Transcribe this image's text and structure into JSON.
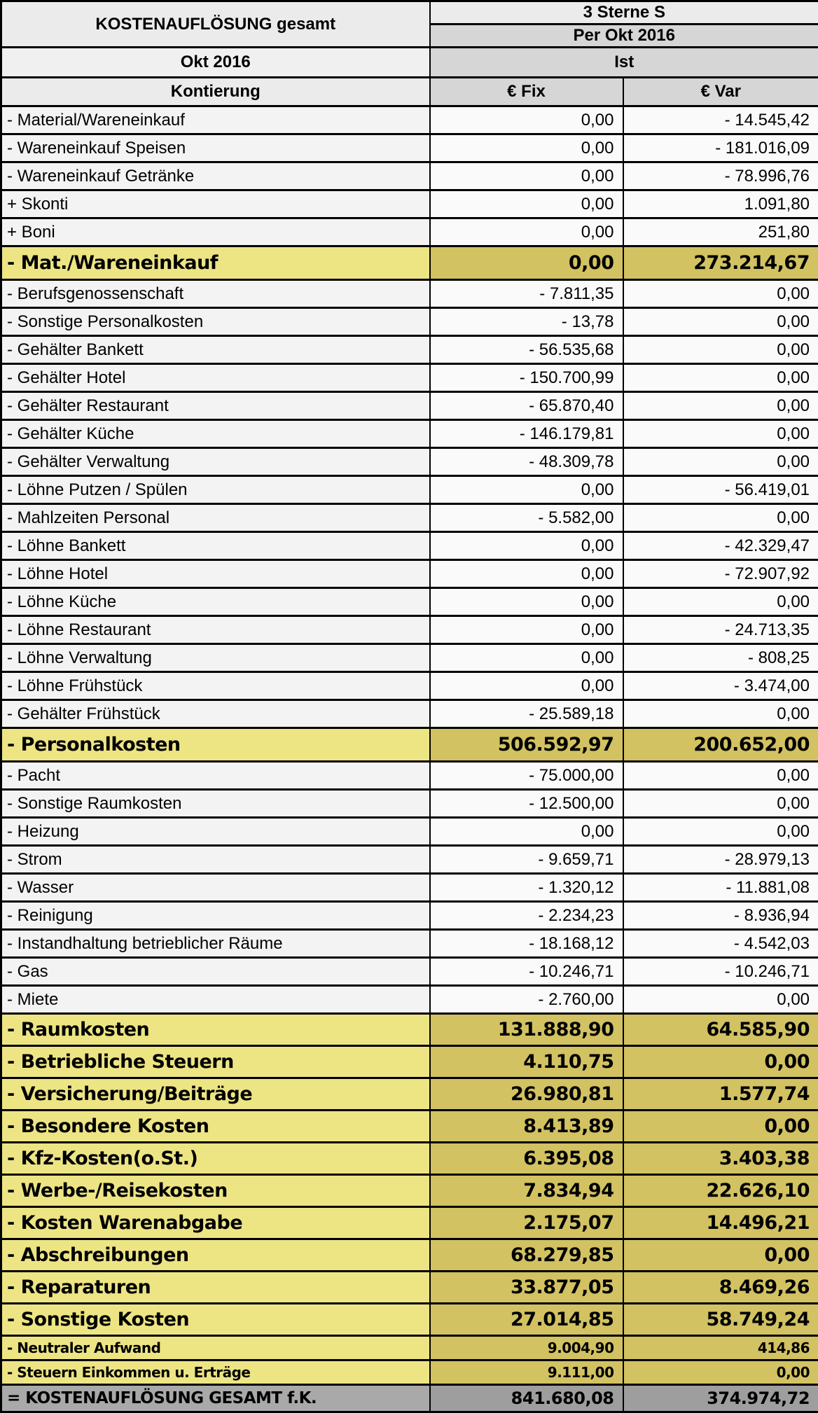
{
  "table": {
    "title": "KOSTENAUFLÖSUNG gesamt",
    "property_class": "3 Sterne S",
    "report_period": "Per Okt 2016",
    "month": "Okt 2016",
    "scenario": "Ist",
    "columns": {
      "account": "Kontierung",
      "fix": "€ Fix",
      "var": "€ Var"
    }
  },
  "rows": [
    {
      "type": "normal",
      "label": "- Material/Wareneinkauf",
      "fix": "0,00",
      "var": "- 14.545,42"
    },
    {
      "type": "normal",
      "label": "- Wareneinkauf Speisen",
      "fix": "0,00",
      "var": "- 181.016,09"
    },
    {
      "type": "normal",
      "label": "- Wareneinkauf Getränke",
      "fix": "0,00",
      "var": "- 78.996,76"
    },
    {
      "type": "normal",
      "label": "+ Skonti",
      "fix": "0,00",
      "var": "1.091,80"
    },
    {
      "type": "normal",
      "label": "+ Boni",
      "fix": "0,00",
      "var": "251,80"
    },
    {
      "type": "summary",
      "label": "- Mat./Wareneinkauf",
      "fix": "0,00",
      "var": "273.214,67"
    },
    {
      "type": "normal",
      "label": "- Berufsgenossenschaft",
      "fix": "- 7.811,35",
      "var": "0,00"
    },
    {
      "type": "normal",
      "label": "- Sonstige Personalkosten",
      "fix": "- 13,78",
      "var": "0,00"
    },
    {
      "type": "normal",
      "label": "- Gehälter Bankett",
      "fix": "- 56.535,68",
      "var": "0,00"
    },
    {
      "type": "normal",
      "label": "- Gehälter Hotel",
      "fix": "- 150.700,99",
      "var": "0,00"
    },
    {
      "type": "normal",
      "label": "- Gehälter Restaurant",
      "fix": "- 65.870,40",
      "var": "0,00"
    },
    {
      "type": "normal",
      "label": "- Gehälter Küche",
      "fix": "- 146.179,81",
      "var": "0,00"
    },
    {
      "type": "normal",
      "label": "- Gehälter Verwaltung",
      "fix": "- 48.309,78",
      "var": "0,00"
    },
    {
      "type": "normal",
      "label": "- Löhne Putzen / Spülen",
      "fix": "0,00",
      "var": "- 56.419,01"
    },
    {
      "type": "normal",
      "label": "- Mahlzeiten Personal",
      "fix": "- 5.582,00",
      "var": "0,00"
    },
    {
      "type": "normal",
      "label": "- Löhne Bankett",
      "fix": "0,00",
      "var": "- 42.329,47"
    },
    {
      "type": "normal",
      "label": "- Löhne Hotel",
      "fix": "0,00",
      "var": "- 72.907,92"
    },
    {
      "type": "normal",
      "label": "- Löhne Küche",
      "fix": "0,00",
      "var": "0,00"
    },
    {
      "type": "normal",
      "label": "- Löhne Restaurant",
      "fix": "0,00",
      "var": "- 24.713,35"
    },
    {
      "type": "normal",
      "label": "- Löhne Verwaltung",
      "fix": "0,00",
      "var": "- 808,25"
    },
    {
      "type": "normal",
      "label": "- Löhne Frühstück",
      "fix": "0,00",
      "var": "- 3.474,00"
    },
    {
      "type": "normal",
      "label": "- Gehälter Frühstück",
      "fix": "- 25.589,18",
      "var": "0,00"
    },
    {
      "type": "summary",
      "label": "- Personalkosten",
      "fix": "506.592,97",
      "var": "200.652,00"
    },
    {
      "type": "normal",
      "label": "- Pacht",
      "fix": "- 75.000,00",
      "var": "0,00"
    },
    {
      "type": "normal",
      "label": "- Sonstige Raumkosten",
      "fix": "- 12.500,00",
      "var": "0,00"
    },
    {
      "type": "normal",
      "label": "- Heizung",
      "fix": "0,00",
      "var": "0,00"
    },
    {
      "type": "normal",
      "label": "- Strom",
      "fix": "- 9.659,71",
      "var": "- 28.979,13"
    },
    {
      "type": "normal",
      "label": "- Wasser",
      "fix": "- 1.320,12",
      "var": "- 11.881,08"
    },
    {
      "type": "normal",
      "label": "- Reinigung",
      "fix": "- 2.234,23",
      "var": "- 8.936,94"
    },
    {
      "type": "normal",
      "label": "- Instandhaltung betrieblicher Räume",
      "fix": "- 18.168,12",
      "var": "- 4.542,03"
    },
    {
      "type": "normal",
      "label": "- Gas",
      "fix": "- 10.246,71",
      "var": "- 10.246,71"
    },
    {
      "type": "normal",
      "label": "- Miete",
      "fix": "- 2.760,00",
      "var": "0,00"
    },
    {
      "type": "section",
      "label": "- Raumkosten",
      "fix": "131.888,90",
      "var": "64.585,90"
    },
    {
      "type": "section",
      "label": "- Betriebliche Steuern",
      "fix": "4.110,75",
      "var": "0,00"
    },
    {
      "type": "section",
      "label": "- Versicherung/Beiträge",
      "fix": "26.980,81",
      "var": "1.577,74"
    },
    {
      "type": "section",
      "label": "- Besondere Kosten",
      "fix": "8.413,89",
      "var": "0,00"
    },
    {
      "type": "section",
      "label": "- Kfz-Kosten(o.St.)",
      "fix": "6.395,08",
      "var": "3.403,38"
    },
    {
      "type": "section",
      "label": "- Werbe-/Reisekosten",
      "fix": "7.834,94",
      "var": "22.626,10"
    },
    {
      "type": "section",
      "label": "- Kosten Warenabgabe",
      "fix": "2.175,07",
      "var": "14.496,21"
    },
    {
      "type": "section",
      "label": "- Abschreibungen",
      "fix": "68.279,85",
      "var": "0,00"
    },
    {
      "type": "section",
      "label": "- Reparaturen",
      "fix": "33.877,05",
      "var": "8.469,26"
    },
    {
      "type": "section",
      "label": "- Sonstige Kosten",
      "fix": "27.014,85",
      "var": "58.749,24"
    },
    {
      "type": "section-small",
      "label": "- Neutraler Aufwand",
      "fix": "9.004,90",
      "var": "414,86"
    },
    {
      "type": "section-small",
      "label": "- Steuern Einkommen u. Erträge",
      "fix": "9.111,00",
      "var": "0,00"
    },
    {
      "type": "total",
      "label": "= KOSTENAUFLÖSUNG GESAMT f.K.",
      "fix": "841.680,08",
      "var": "374.974,72"
    }
  ],
  "colors": {
    "header_light_bg": "#ebebeb",
    "header_mid_bg": "#d6d6d6",
    "row_label_bg": "#f3f3f3",
    "row_value_bg": "#fafafa",
    "summary_label_bg": "#ede584",
    "summary_value_bg": "#d2c262",
    "total_label_bg": "#a9a9a9",
    "total_value_bg": "#9e9e9e",
    "grid_color": "#000000"
  }
}
